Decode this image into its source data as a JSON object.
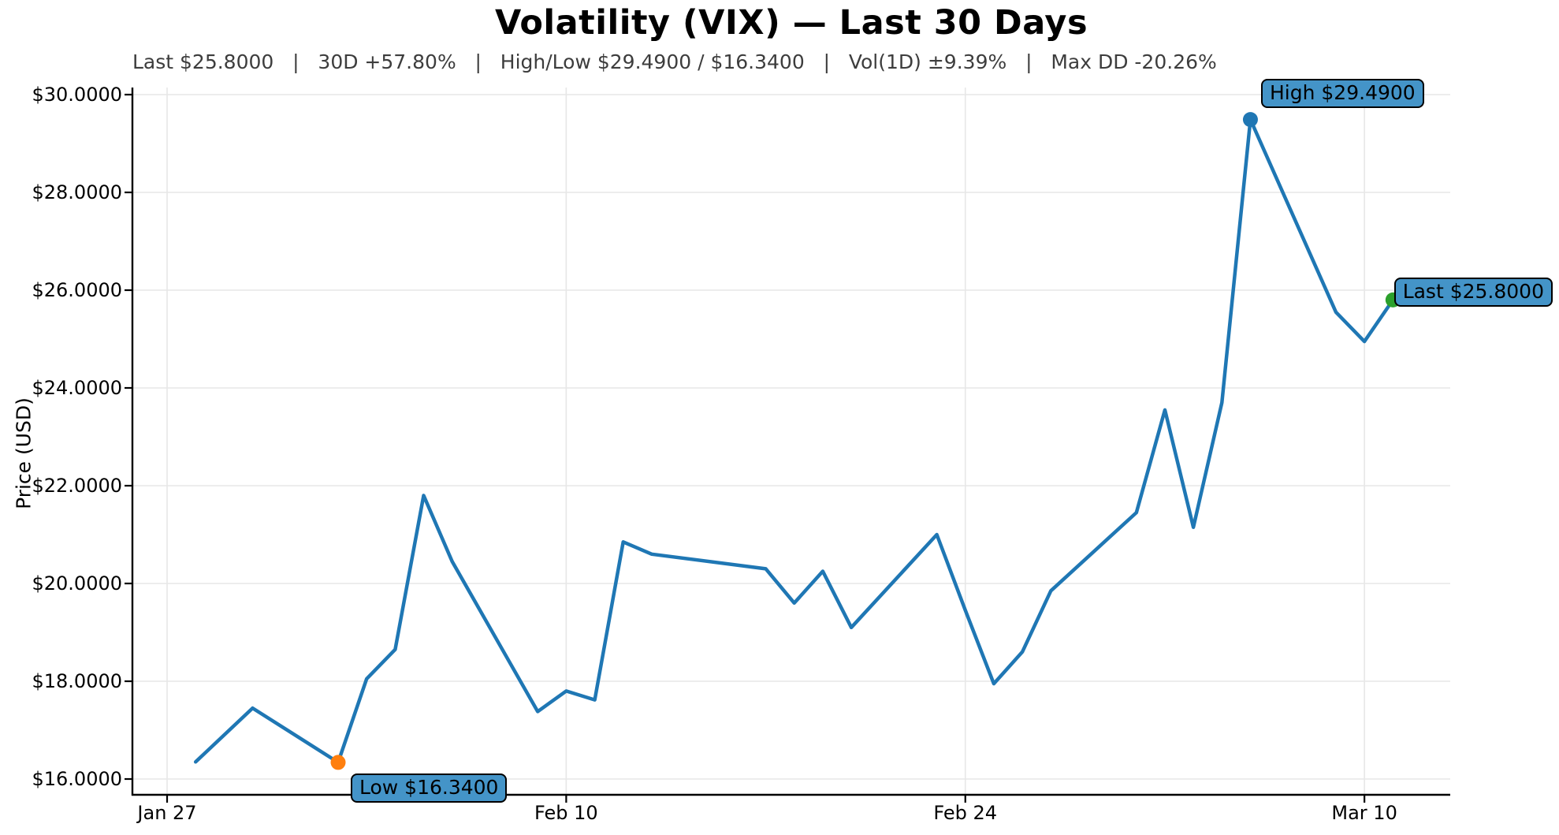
{
  "header": {
    "title": "Volatility (VIX) — Last 30 Days",
    "subtitle": "Last $25.8000   |   30D +57.80%   |   High/Low $29.4900 / $16.3400   |   Vol(1D) ±9.39%   |   Max DD -20.26%"
  },
  "stats": {
    "last": "$25.8000",
    "change_30d": "+57.80%",
    "high": "$29.4900",
    "low": "$16.3400",
    "vol_1d": "±9.39%",
    "max_drawdown": "-20.26%"
  },
  "annotations": {
    "high": {
      "label": "High $29.4900",
      "box_color": "#4494c8"
    },
    "last": {
      "label": "Last $25.8000",
      "box_color": "#4494c8"
    },
    "low": {
      "label": "Low $16.3400",
      "box_color": "#4494c8"
    }
  },
  "chart_data": {
    "type": "line",
    "title": "Volatility (VIX) — Last 30 Days",
    "xlabel": "",
    "ylabel": "Price (USD)",
    "ylim": [
      15.68,
      30.15
    ],
    "xlim_days": [
      -1.2,
      45.0
    ],
    "grid": true,
    "legend": "none",
    "line_color": "#1f77b4",
    "grid_color": "#e7e7e7",
    "spine_color": "#000000",
    "y_ticks": [
      {
        "value": 16,
        "label": "$16.0000"
      },
      {
        "value": 18,
        "label": "$18.0000"
      },
      {
        "value": 20,
        "label": "$20.0000"
      },
      {
        "value": 22,
        "label": "$22.0000"
      },
      {
        "value": 24,
        "label": "$24.0000"
      },
      {
        "value": 26,
        "label": "$26.0000"
      },
      {
        "value": 28,
        "label": "$28.0000"
      },
      {
        "value": 30,
        "label": "$30.0000"
      }
    ],
    "x_ticks": [
      {
        "day": 0,
        "label": "Jan 27"
      },
      {
        "day": 14,
        "label": "Feb 10"
      },
      {
        "day": 28,
        "label": "Feb 24"
      },
      {
        "day": 42,
        "label": "Mar 10"
      }
    ],
    "points": [
      {
        "date": "Jan 28",
        "day": 1,
        "value": 16.35
      },
      {
        "date": "Jan 29",
        "day": 2,
        "value": 16.9
      },
      {
        "date": "Jan 30",
        "day": 3,
        "value": 17.45
      },
      {
        "date": "Feb 2",
        "day": 6,
        "value": 16.34
      },
      {
        "date": "Feb 3",
        "day": 7,
        "value": 18.05
      },
      {
        "date": "Feb 4",
        "day": 8,
        "value": 18.65
      },
      {
        "date": "Feb 5",
        "day": 9,
        "value": 21.8
      },
      {
        "date": "Feb 6",
        "day": 10,
        "value": 20.45
      },
      {
        "date": "Feb 9",
        "day": 13,
        "value": 17.38
      },
      {
        "date": "Feb 10",
        "day": 14,
        "value": 17.8
      },
      {
        "date": "Feb 11",
        "day": 15,
        "value": 17.62
      },
      {
        "date": "Feb 12",
        "day": 16,
        "value": 20.85
      },
      {
        "date": "Feb 13",
        "day": 17,
        "value": 20.6
      },
      {
        "date": "Feb 17",
        "day": 21,
        "value": 20.3
      },
      {
        "date": "Feb 18",
        "day": 22,
        "value": 19.6
      },
      {
        "date": "Feb 19",
        "day": 23,
        "value": 20.25
      },
      {
        "date": "Feb 20",
        "day": 24,
        "value": 19.1
      },
      {
        "date": "Feb 23",
        "day": 27,
        "value": 21.0
      },
      {
        "date": "Feb 24",
        "day": 28,
        "value": 19.45
      },
      {
        "date": "Feb 25",
        "day": 29,
        "value": 17.95
      },
      {
        "date": "Feb 26",
        "day": 30,
        "value": 18.6
      },
      {
        "date": "Feb 27",
        "day": 31,
        "value": 19.85
      },
      {
        "date": "Mar 2",
        "day": 34,
        "value": 21.45
      },
      {
        "date": "Mar 3",
        "day": 35,
        "value": 23.55
      },
      {
        "date": "Mar 4",
        "day": 36,
        "value": 21.15
      },
      {
        "date": "Mar 5",
        "day": 37,
        "value": 23.7
      },
      {
        "date": "Mar 6",
        "day": 38,
        "value": 29.49
      },
      {
        "date": "Mar 9",
        "day": 41,
        "value": 25.55
      },
      {
        "date": "Mar 10",
        "day": 42,
        "value": 24.95
      },
      {
        "date": "Mar 11",
        "day": 43,
        "value": 25.8
      }
    ],
    "markers": [
      {
        "name": "low-marker",
        "day": 6,
        "value": 16.34,
        "color": "#ff7f0e"
      },
      {
        "name": "high-marker",
        "day": 38,
        "value": 29.49,
        "color": "#1f77b4"
      },
      {
        "name": "last-marker",
        "day": 43,
        "value": 25.8,
        "color": "#2ca02c"
      }
    ]
  }
}
